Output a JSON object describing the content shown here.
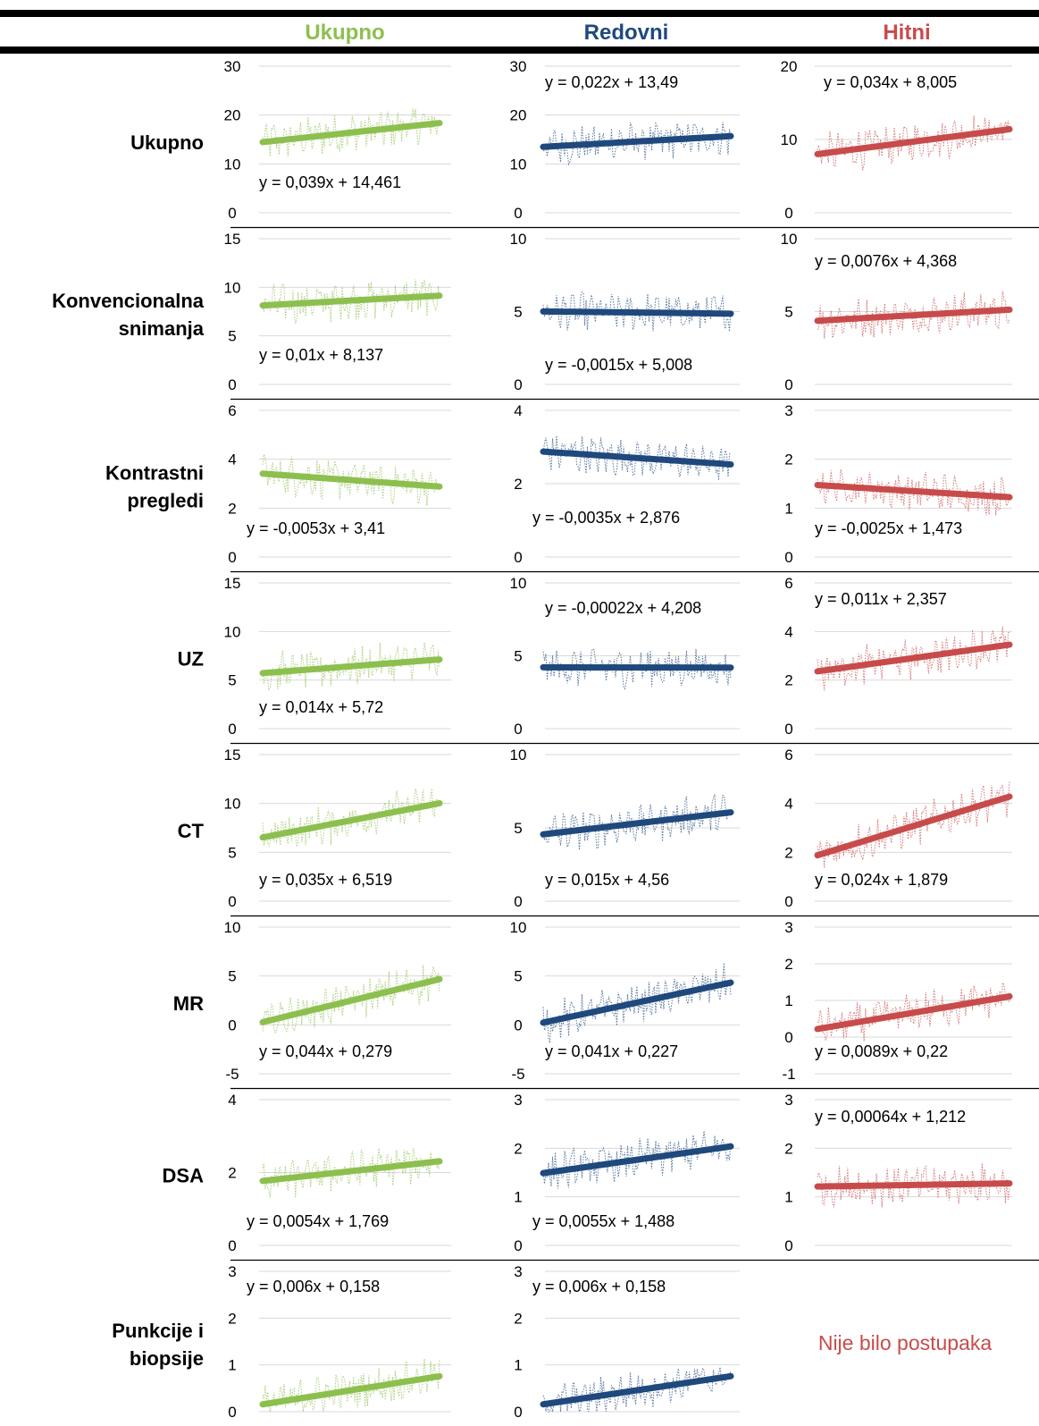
{
  "colors": {
    "ukupno": "#8DBF4F",
    "redovni": "#1F497D",
    "hitni": "#C84B4B",
    "grid": "#D9D9D9",
    "border": "#000000"
  },
  "header": {
    "columns": [
      "Ukupno",
      "Redovni",
      "Hitni"
    ]
  },
  "rows": [
    {
      "label": [
        "Ukupno"
      ]
    },
    {
      "label": [
        "Konvencionalna",
        "snimanja"
      ]
    },
    {
      "label": [
        "Kontrastni",
        "pregledi"
      ]
    },
    {
      "label": [
        "UZ"
      ]
    },
    {
      "label": [
        "CT"
      ]
    },
    {
      "label": [
        "MR"
      ]
    },
    {
      "label": [
        "DSA"
      ]
    },
    {
      "label": [
        "Punkcije i",
        "biopsije"
      ]
    }
  ],
  "empty_cell_text": "Nije bilo postupaka",
  "chart_data": [
    {
      "row": "Ukupno",
      "column": "Ukupno",
      "type": "line",
      "ylim": [
        0,
        30
      ],
      "ticks": [
        0,
        10,
        20,
        30
      ],
      "trendline": {
        "equation": "y = 0,039x + 14,461",
        "slope": 0.039,
        "intercept": 14.461
      }
    },
    {
      "row": "Ukupno",
      "column": "Redovni",
      "type": "line",
      "ylim": [
        0,
        30
      ],
      "ticks": [
        0,
        10,
        20,
        30
      ],
      "trendline": {
        "equation": "y = 0,022x + 13,49",
        "slope": 0.022,
        "intercept": 13.49
      }
    },
    {
      "row": "Ukupno",
      "column": "Hitni",
      "type": "line",
      "ylim": [
        0,
        20
      ],
      "ticks": [
        0,
        10,
        20
      ],
      "trendline": {
        "equation": "y = 0,034x + 8,005",
        "slope": 0.034,
        "intercept": 8.005
      }
    },
    {
      "row": "Konvencionalna snimanja",
      "column": "Ukupno",
      "type": "line",
      "ylim": [
        0,
        15
      ],
      "ticks": [
        0,
        5,
        10,
        15
      ],
      "trendline": {
        "equation": "y = 0,01x + 8,137",
        "slope": 0.01,
        "intercept": 8.137
      }
    },
    {
      "row": "Konvencionalna snimanja",
      "column": "Redovni",
      "type": "line",
      "ylim": [
        0,
        10
      ],
      "ticks": [
        0,
        5,
        10
      ],
      "trendline": {
        "equation": "y = -0,0015x + 5,008",
        "slope": -0.0015,
        "intercept": 5.008
      }
    },
    {
      "row": "Konvencionalna snimanja",
      "column": "Hitni",
      "type": "line",
      "ylim": [
        0,
        10
      ],
      "ticks": [
        0,
        5,
        10
      ],
      "trendline": {
        "equation": "y = 0,0076x + 4,368",
        "slope": 0.0076,
        "intercept": 4.368
      }
    },
    {
      "row": "Kontrastni pregledi",
      "column": "Ukupno",
      "type": "line",
      "ylim": [
        0,
        6
      ],
      "ticks": [
        0,
        2,
        4,
        6
      ],
      "trendline": {
        "equation": "y = -0,0053x + 3,41",
        "slope": -0.0053,
        "intercept": 3.41
      }
    },
    {
      "row": "Kontrastni pregledi",
      "column": "Redovni",
      "type": "line",
      "ylim": [
        0,
        4
      ],
      "ticks": [
        0,
        2,
        4
      ],
      "trendline": {
        "equation": "y = -0,0035x + 2,876",
        "slope": -0.0035,
        "intercept": 2.876
      }
    },
    {
      "row": "Kontrastni pregledi",
      "column": "Hitni",
      "type": "line",
      "ylim": [
        0,
        3
      ],
      "ticks": [
        0,
        1,
        2,
        3
      ],
      "trendline": {
        "equation": "y = -0,0025x + 1,473",
        "slope": -0.0025,
        "intercept": 1.473
      }
    },
    {
      "row": "UZ",
      "column": "Ukupno",
      "type": "line",
      "ylim": [
        0,
        15
      ],
      "ticks": [
        0,
        5,
        10,
        15
      ],
      "trendline": {
        "equation": "y = 0,014x + 5,72",
        "slope": 0.014,
        "intercept": 5.72
      }
    },
    {
      "row": "UZ",
      "column": "Redovni",
      "type": "line",
      "ylim": [
        0,
        10
      ],
      "ticks": [
        0,
        5,
        10
      ],
      "trendline": {
        "equation": "y = -0,00022x + 4,208",
        "slope": -0.00022,
        "intercept": 4.208
      }
    },
    {
      "row": "UZ",
      "column": "Hitni",
      "type": "line",
      "ylim": [
        0,
        6
      ],
      "ticks": [
        0,
        2,
        4,
        6
      ],
      "trendline": {
        "equation": "y = 0,011x + 2,357",
        "slope": 0.011,
        "intercept": 2.357
      }
    },
    {
      "row": "CT",
      "column": "Ukupno",
      "type": "line",
      "ylim": [
        0,
        15
      ],
      "ticks": [
        0,
        5,
        10,
        15
      ],
      "trendline": {
        "equation": "y = 0,035x + 6,519",
        "slope": 0.035,
        "intercept": 6.519
      }
    },
    {
      "row": "CT",
      "column": "Redovni",
      "type": "line",
      "ylim": [
        0,
        10
      ],
      "ticks": [
        0,
        5,
        10
      ],
      "trendline": {
        "equation": "y = 0,015x + 4,56",
        "slope": 0.015,
        "intercept": 4.56
      }
    },
    {
      "row": "CT",
      "column": "Hitni",
      "type": "line",
      "ylim": [
        0,
        6
      ],
      "ticks": [
        0,
        2,
        4,
        6
      ],
      "trendline": {
        "equation": "y = 0,024x + 1,879",
        "slope": 0.024,
        "intercept": 1.879
      }
    },
    {
      "row": "MR",
      "column": "Ukupno",
      "type": "line",
      "ylim": [
        -5,
        10
      ],
      "ticks": [
        -5,
        0,
        5,
        10
      ],
      "trendline": {
        "equation": "y = 0,044x + 0,279",
        "slope": 0.044,
        "intercept": 0.279
      }
    },
    {
      "row": "MR",
      "column": "Redovni",
      "type": "line",
      "ylim": [
        -5,
        10
      ],
      "ticks": [
        -5,
        0,
        5,
        10
      ],
      "trendline": {
        "equation": "y = 0,041x + 0,227",
        "slope": 0.041,
        "intercept": 0.227
      }
    },
    {
      "row": "MR",
      "column": "Hitni",
      "type": "line",
      "ylim": [
        -1,
        3
      ],
      "ticks": [
        -1,
        0,
        1,
        2,
        3
      ],
      "trendline": {
        "equation": "y = 0,0089x + 0,22",
        "slope": 0.0089,
        "intercept": 0.22
      }
    },
    {
      "row": "DSA",
      "column": "Ukupno",
      "type": "line",
      "ylim": [
        0,
        4
      ],
      "ticks": [
        0,
        2,
        4
      ],
      "trendline": {
        "equation": "y = 0,0054x + 1,769",
        "slope": 0.0054,
        "intercept": 1.769
      }
    },
    {
      "row": "DSA",
      "column": "Redovni",
      "type": "line",
      "ylim": [
        0,
        3
      ],
      "ticks": [
        0,
        1,
        2,
        3
      ],
      "trendline": {
        "equation": "y = 0,0055x + 1,488",
        "slope": 0.0055,
        "intercept": 1.488
      }
    },
    {
      "row": "DSA",
      "column": "Hitni",
      "type": "line",
      "ylim": [
        0,
        3
      ],
      "ticks": [
        0,
        1,
        2,
        3
      ],
      "trendline": {
        "equation": "y = 0,00064x + 1,212",
        "slope": 0.00064,
        "intercept": 1.212
      }
    },
    {
      "row": "Punkcije i biopsije",
      "column": "Ukupno",
      "type": "line",
      "ylim": [
        0,
        3
      ],
      "ticks": [
        0,
        1,
        2,
        3
      ],
      "trendline": {
        "equation": "y = 0,006x + 0,158",
        "slope": 0.006,
        "intercept": 0.158
      }
    },
    {
      "row": "Punkcije i biopsije",
      "column": "Redovni",
      "type": "line",
      "ylim": [
        0,
        3
      ],
      "ticks": [
        0,
        1,
        2,
        3
      ],
      "trendline": {
        "equation": "y = 0,006x + 0,158",
        "slope": 0.006,
        "intercept": 0.158
      }
    }
  ]
}
